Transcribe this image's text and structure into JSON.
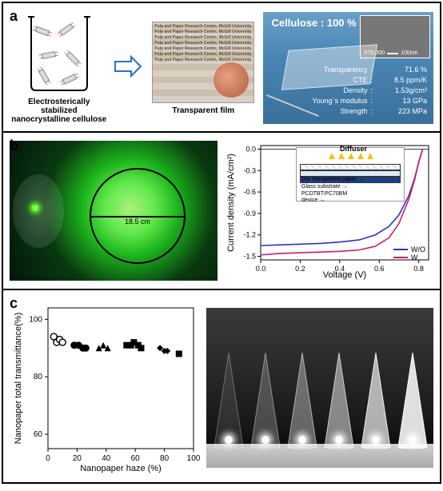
{
  "panels": {
    "a": "a",
    "b": "b",
    "c": "c"
  },
  "panel_a": {
    "beaker_caption_l1": "Electrosterically stabilized",
    "beaker_caption_l2": "nanocrystalline cellulose",
    "film_caption": "Transparent film",
    "film_bgtext": "Pulp and Paper Research Centre, McGill University. Pulp and Paper Research Centre, McGill University. Pulp and Paper Research Centre, McGill University. Pulp and Paper Research Centre, McGill University. Pulp and Paper Research Centre, McGill University. Pulp and Paper Research Centre, McGill University. Pulp and Paper Research Centre, McGill University.",
    "props_title": "Cellulose : 100 %",
    "sem_mag": "X75,000",
    "sem_scale": "100nm",
    "props": [
      {
        "k": "Transparency",
        "v": "71.6 %"
      },
      {
        "k": "CTE",
        "v": "8.5 ppm/K"
      },
      {
        "k": "Density",
        "v": "1.53g/cm³"
      },
      {
        "k": "Young´s modulus",
        "v": "13 GPa"
      },
      {
        "k": "Strength",
        "v": "223 MPa"
      }
    ]
  },
  "panel_b": {
    "diameter": "18.5 cm",
    "chart": {
      "xlabel": "Voltage (V)",
      "ylabel": "Current density (mA/cm²)",
      "x_ticks": [
        "0.0",
        "0.2",
        "0.4",
        "0.6",
        "0.8"
      ],
      "y_ticks": [
        "0.0",
        "-0.3",
        "-0.6",
        "-0.9",
        "-1.2",
        "-1.5"
      ],
      "xlim": [
        0.0,
        0.85
      ],
      "ylim": [
        -1.55,
        0.05
      ],
      "series": [
        {
          "name": "W/O",
          "color": "#2b34c7",
          "pts": [
            [
              0.0,
              -1.35
            ],
            [
              0.1,
              -1.34
            ],
            [
              0.2,
              -1.33
            ],
            [
              0.3,
              -1.32
            ],
            [
              0.4,
              -1.3
            ],
            [
              0.5,
              -1.27
            ],
            [
              0.58,
              -1.2
            ],
            [
              0.65,
              -1.08
            ],
            [
              0.7,
              -0.92
            ],
            [
              0.75,
              -0.65
            ],
            [
              0.78,
              -0.4
            ],
            [
              0.8,
              -0.18
            ],
            [
              0.82,
              0.0
            ]
          ]
        },
        {
          "name": "W",
          "color": "#d11a6a",
          "pts": [
            [
              0.0,
              -1.48
            ],
            [
              0.1,
              -1.46
            ],
            [
              0.2,
              -1.45
            ],
            [
              0.3,
              -1.44
            ],
            [
              0.4,
              -1.43
            ],
            [
              0.5,
              -1.41
            ],
            [
              0.58,
              -1.36
            ],
            [
              0.65,
              -1.24
            ],
            [
              0.7,
              -1.04
            ],
            [
              0.75,
              -0.7
            ],
            [
              0.78,
              -0.42
            ],
            [
              0.8,
              -0.18
            ],
            [
              0.82,
              0.0
            ]
          ]
        }
      ]
    },
    "inset": {
      "diffuser": "Diffuser",
      "l1": "Our transparent paper",
      "l2": "Glass substrate",
      "l3": "PCDTBT:PC70BM",
      "l4": "device"
    }
  },
  "panel_c": {
    "chart": {
      "xlabel": "Nanopaper haze (%)",
      "ylabel": "Nanopaper total transmittance(%)",
      "x_ticks": [
        "0",
        "20",
        "40",
        "60",
        "80",
        "100"
      ],
      "y_ticks": [
        "60",
        "80",
        "100"
      ],
      "xlim": [
        0,
        100
      ],
      "ylim": [
        55,
        104
      ],
      "groups": [
        {
          "marker": "circle-open",
          "color": "#000",
          "pts": [
            [
              4,
              94
            ],
            [
              6,
              92
            ],
            [
              8,
              93
            ],
            [
              10,
              92
            ]
          ]
        },
        {
          "marker": "circle",
          "color": "#000",
          "pts": [
            [
              18,
              91
            ],
            [
              21,
              91
            ],
            [
              24,
              90
            ],
            [
              26,
              90
            ]
          ]
        },
        {
          "marker": "triangle",
          "color": "#000",
          "pts": [
            [
              35,
              90
            ],
            [
              38,
              91
            ],
            [
              41,
              90
            ]
          ]
        },
        {
          "marker": "square",
          "color": "#000",
          "pts": [
            [
              54,
              91
            ],
            [
              57,
              91
            ],
            [
              59,
              92
            ],
            [
              62,
              91
            ],
            [
              64,
              90
            ]
          ]
        },
        {
          "marker": "diamond",
          "color": "#000",
          "pts": [
            [
              77,
              90
            ],
            [
              80,
              89
            ],
            [
              82,
              89
            ]
          ]
        },
        {
          "marker": "square",
          "color": "#000",
          "pts": [
            [
              90,
              88
            ]
          ]
        }
      ]
    },
    "cones": [
      {
        "opacity": 0.1
      },
      {
        "opacity": 0.22
      },
      {
        "opacity": 0.34
      },
      {
        "opacity": 0.48
      },
      {
        "opacity": 0.66
      },
      {
        "opacity": 0.86
      }
    ]
  },
  "style": {
    "colors": {
      "border": "#000000",
      "sky_top": "#6aa0c7",
      "sky_bot": "#396f9b",
      "green_glow": "#1cb41c"
    },
    "fontsize": {
      "panel_label": 18,
      "axis_label": 11,
      "tick": 9
    }
  }
}
